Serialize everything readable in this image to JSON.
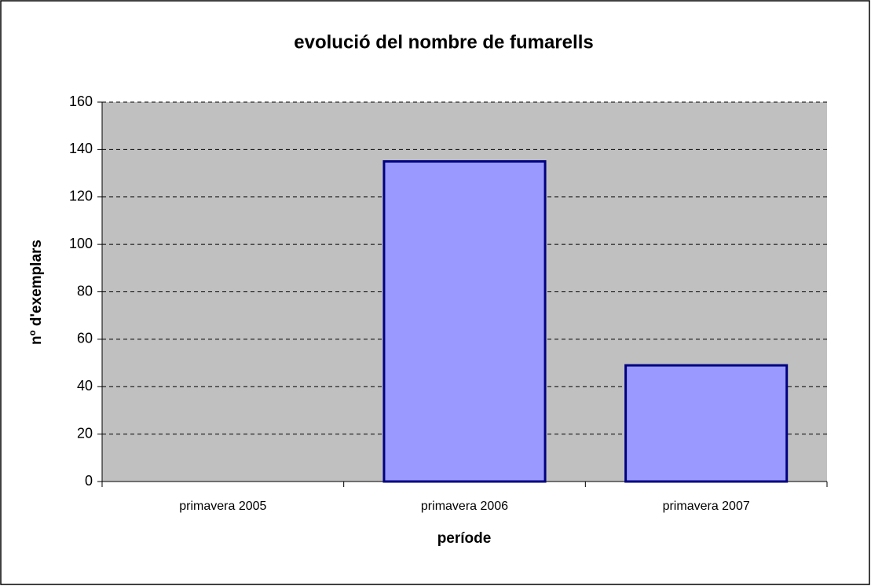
{
  "chart_data": {
    "type": "bar",
    "title": "evolució del nombre de fumarells",
    "xlabel": "període",
    "ylabel": "nº d'exemplars",
    "categories": [
      "primavera 2005",
      "primavera 2006",
      "primavera 2007"
    ],
    "values": [
      0,
      135,
      49
    ],
    "color": "#9999ff",
    "edgecolor": "#000080",
    "ylim": [
      0,
      160
    ],
    "yticks": [
      0,
      20,
      40,
      60,
      80,
      100,
      120,
      140,
      160
    ],
    "grid": true
  }
}
